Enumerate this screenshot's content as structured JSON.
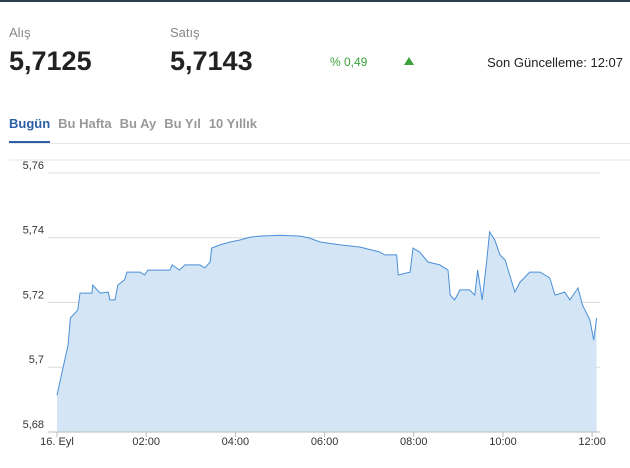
{
  "header": {
    "buy_label": "Alış",
    "buy": "5,7125",
    "sell_label": "Satış",
    "sell": "5,7143",
    "change": "% 0,49",
    "updated": "Son Güncelleme: 12:07"
  },
  "tabs": [
    "Bugün",
    "Bu Hafta",
    "Bu Ay",
    "Bu Yıl",
    "10 Yıllık"
  ],
  "chart_data": {
    "type": "area",
    "color": "#4a8fd8",
    "fill": "#d4e6f6",
    "grid": true,
    "x": [
      "00:00",
      "00:15",
      "00:18",
      "00:28",
      "00:31",
      "00:47",
      "00:48",
      "00:58",
      "01:09",
      "01:11",
      "01:18",
      "01:22",
      "01:31",
      "01:34",
      "01:52",
      "01:58",
      "02:02",
      "02:32",
      "02:35",
      "02:45",
      "02:52",
      "03:12",
      "03:19",
      "03:26",
      "03:28",
      "03:39",
      "03:53",
      "04:06",
      "04:20",
      "04:33",
      "05:00",
      "05:27",
      "05:40",
      "05:54",
      "06:21",
      "06:48",
      "07:14",
      "07:21",
      "07:37",
      "07:39",
      "07:55",
      "07:59",
      "08:08",
      "08:19",
      "08:35",
      "08:46",
      "08:49",
      "08:55",
      "09:02",
      "09:15",
      "09:22",
      "09:26",
      "09:32",
      "09:38",
      "09:42",
      "09:49",
      "09:56",
      "10:03",
      "10:09",
      "10:16",
      "10:23",
      "10:36",
      "10:50",
      "11:03",
      "11:10",
      "11:23",
      "11:30",
      "11:41",
      "11:47",
      "11:57",
      "12:02",
      "12:06"
    ],
    "values": [
      5.6914,
      5.7069,
      5.7152,
      5.7177,
      5.7229,
      5.7229,
      5.7254,
      5.7229,
      5.7232,
      5.7208,
      5.7208,
      5.7254,
      5.727,
      5.7294,
      5.7294,
      5.7285,
      5.73,
      5.73,
      5.7316,
      5.73,
      5.7316,
      5.7316,
      5.7307,
      5.7325,
      5.7368,
      5.7378,
      5.7387,
      5.7393,
      5.7402,
      5.7405,
      5.7408,
      5.7405,
      5.7399,
      5.7387,
      5.7378,
      5.7371,
      5.7356,
      5.7347,
      5.7347,
      5.7285,
      5.7294,
      5.7368,
      5.7356,
      5.7325,
      5.7316,
      5.73,
      5.7223,
      5.7208,
      5.7239,
      5.7239,
      5.7223,
      5.73,
      5.7208,
      5.7325,
      5.7418,
      5.7393,
      5.7347,
      5.7331,
      5.7285,
      5.7232,
      5.7263,
      5.7294,
      5.7294,
      5.7276,
      5.7223,
      5.7232,
      5.7208,
      5.7245,
      5.7192,
      5.7146,
      5.7084,
      5.7152
    ],
    "xlim": [
      "00:00",
      "12:10"
    ],
    "xticks": [
      {
        "value": "00:00",
        "label": "16. Eyl"
      },
      "02:00",
      "04:00",
      "06:00",
      "08:00",
      "10:00",
      "12:00"
    ],
    "ylim": [
      5.68,
      5.76
    ],
    "yticks": [
      {
        "value": 5.68,
        "label": "5,68"
      },
      {
        "value": 5.7,
        "label": "5,7"
      },
      {
        "value": 5.72,
        "label": "5,72"
      },
      {
        "value": 5.74,
        "label": "5,74"
      },
      {
        "value": 5.76,
        "label": "5,76"
      }
    ]
  }
}
